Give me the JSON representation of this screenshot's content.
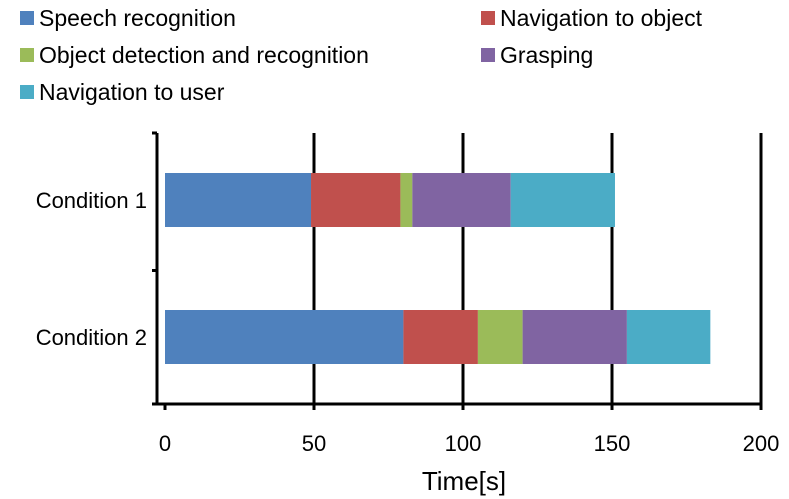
{
  "chart_data": {
    "type": "bar",
    "orientation": "horizontal",
    "stacked": true,
    "categories": [
      "Condition 1",
      "Condition 2"
    ],
    "series": [
      {
        "name": "Speech recognition",
        "values": [
          49,
          80
        ],
        "color": "#4F81BD"
      },
      {
        "name": "Navigation to object",
        "values": [
          30,
          25
        ],
        "color": "#C0504D"
      },
      {
        "name": "Object detection and recognition",
        "values": [
          4,
          15
        ],
        "color": "#9BBB59"
      },
      {
        "name": "Grasping",
        "values": [
          33,
          35
        ],
        "color": "#8064A2"
      },
      {
        "name": "Navigation to user",
        "values": [
          35,
          28
        ],
        "color": "#4BACC6"
      }
    ],
    "title": "",
    "xlabel": "Time[s]",
    "ylabel": "",
    "xlim": [
      0,
      200
    ],
    "xticks": [
      0,
      50,
      100,
      150,
      200
    ],
    "xtick_labels": [
      "0",
      "50",
      "100",
      "150",
      "200"
    ],
    "grid": "vertical",
    "legend_position": "top-left"
  }
}
